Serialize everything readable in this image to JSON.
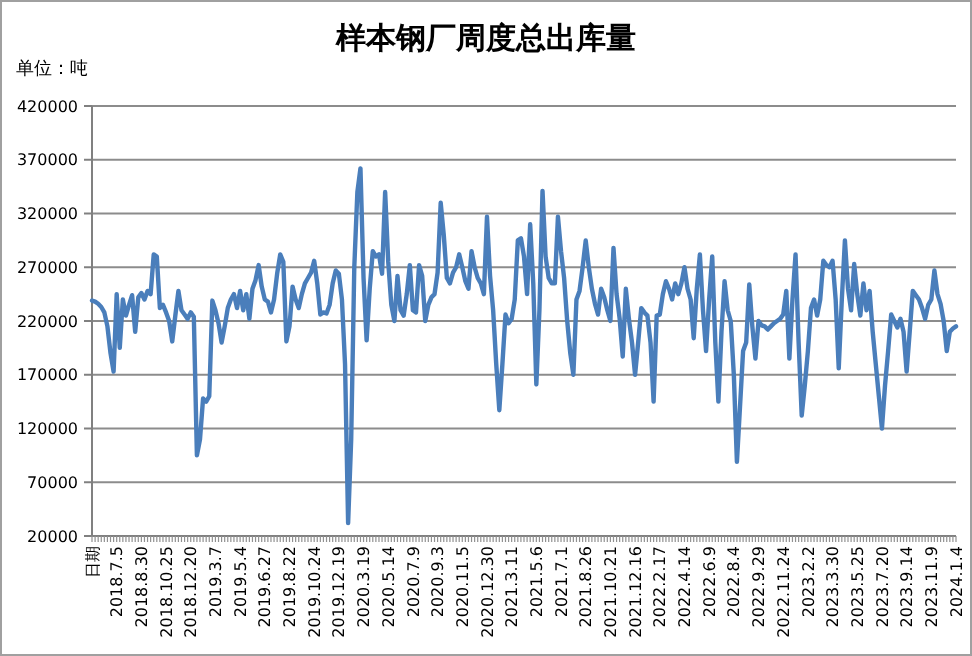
{
  "chart_data": {
    "type": "line",
    "title": "样本钢厂周度总出库量",
    "ylabel": "单位：吨",
    "categories": [
      "日期",
      null,
      null,
      null,
      null,
      null,
      null,
      null,
      "2018.7.5",
      null,
      null,
      null,
      null,
      null,
      null,
      null,
      "2018.8.30",
      null,
      null,
      null,
      null,
      null,
      null,
      null,
      "2018.10.25",
      null,
      null,
      null,
      null,
      null,
      null,
      null,
      "2018.12.20",
      null,
      null,
      null,
      null,
      null,
      null,
      null,
      "2019.3.7",
      null,
      null,
      null,
      null,
      null,
      null,
      null,
      "2019.5.4",
      null,
      null,
      null,
      null,
      null,
      null,
      null,
      "2019.6.27",
      null,
      null,
      null,
      null,
      null,
      null,
      null,
      "2019.8.22",
      null,
      null,
      null,
      null,
      null,
      null,
      null,
      "2019.10.24",
      null,
      null,
      null,
      null,
      null,
      null,
      null,
      "2019.12.19",
      null,
      null,
      null,
      null,
      null,
      null,
      null,
      "2020.3.19",
      null,
      null,
      null,
      null,
      null,
      null,
      null,
      "2020.5.14",
      null,
      null,
      null,
      null,
      null,
      null,
      null,
      "2020.7.9",
      null,
      null,
      null,
      null,
      null,
      null,
      null,
      "2020.9.3",
      null,
      null,
      null,
      null,
      null,
      null,
      null,
      "2020.11.5",
      null,
      null,
      null,
      null,
      null,
      null,
      null,
      "2020.12.30",
      null,
      null,
      null,
      null,
      null,
      null,
      null,
      "2021.3.11",
      null,
      null,
      null,
      null,
      null,
      null,
      null,
      "2021.5.6",
      null,
      null,
      null,
      null,
      null,
      null,
      null,
      "2021.7.1",
      null,
      null,
      null,
      null,
      null,
      null,
      null,
      "2021.8.26",
      null,
      null,
      null,
      null,
      null,
      null,
      null,
      "2021.10.21",
      null,
      null,
      null,
      null,
      null,
      null,
      null,
      "2021.12.16",
      null,
      null,
      null,
      null,
      null,
      null,
      null,
      "2022.2.17",
      null,
      null,
      null,
      null,
      null,
      null,
      null,
      "2022.4.14",
      null,
      null,
      null,
      null,
      null,
      null,
      null,
      "2022.6.9",
      null,
      null,
      null,
      null,
      null,
      null,
      null,
      "2022.8.4",
      null,
      null,
      null,
      null,
      null,
      null,
      null,
      "2022.9.29",
      null,
      null,
      null,
      null,
      null,
      null,
      null,
      "2022.11.24",
      null,
      null,
      null,
      null,
      null,
      null,
      null,
      "2023.2.2",
      null,
      null,
      null,
      null,
      null,
      null,
      null,
      "2023.3.30",
      null,
      null,
      null,
      null,
      null,
      null,
      null,
      "2023.5.25",
      null,
      null,
      null,
      null,
      null,
      null,
      null,
      "2023.7.20",
      null,
      null,
      null,
      null,
      null,
      null,
      null,
      "2023.9.14",
      null,
      null,
      null,
      null,
      null,
      null,
      null,
      "2023.11.9",
      null,
      null,
      null,
      null,
      null,
      null,
      null,
      "2024.1.4"
    ],
    "series": [
      {
        "color": "#4a7ebb",
        "values": [
          239000,
          238000,
          236000,
          233000,
          228000,
          215000,
          190000,
          173000,
          245000,
          195000,
          240000,
          225000,
          235000,
          244000,
          210000,
          242000,
          246000,
          240000,
          248000,
          245000,
          282000,
          280000,
          232000,
          235000,
          228000,
          220000,
          201000,
          225000,
          248000,
          230000,
          226000,
          222000,
          228000,
          224000,
          95000,
          110000,
          148000,
          145000,
          150000,
          239000,
          230000,
          218000,
          200000,
          215000,
          232000,
          240000,
          245000,
          232000,
          248000,
          230000,
          245000,
          222000,
          250000,
          258000,
          272000,
          252000,
          240000,
          238000,
          228000,
          240000,
          264000,
          282000,
          275000,
          201000,
          215000,
          252000,
          240000,
          232000,
          245000,
          255000,
          260000,
          265000,
          276000,
          255000,
          226000,
          228000,
          227000,
          235000,
          255000,
          267000,
          264000,
          240000,
          180000,
          32000,
          110000,
          270000,
          340000,
          362000,
          260000,
          202000,
          250000,
          285000,
          280000,
          282000,
          264000,
          340000,
          275000,
          235000,
          220000,
          262000,
          230000,
          225000,
          245000,
          272000,
          230000,
          228000,
          272000,
          262000,
          220000,
          235000,
          242000,
          245000,
          265000,
          330000,
          300000,
          260000,
          255000,
          265000,
          270000,
          282000,
          270000,
          257000,
          250000,
          285000,
          270000,
          260000,
          255000,
          245000,
          317000,
          262000,
          230000,
          180000,
          137000,
          180000,
          226000,
          218000,
          222000,
          240000,
          295000,
          297000,
          280000,
          245000,
          310000,
          255000,
          161000,
          230000,
          341000,
          280000,
          260000,
          255000,
          255000,
          317000,
          285000,
          260000,
          220000,
          190000,
          170000,
          240000,
          248000,
          270000,
          295000,
          270000,
          250000,
          236000,
          226000,
          250000,
          242000,
          230000,
          220000,
          288000,
          245000,
          222000,
          187000,
          250000,
          222000,
          200000,
          170000,
          200000,
          232000,
          228000,
          225000,
          200000,
          145000,
          225000,
          226000,
          245000,
          257000,
          250000,
          240000,
          255000,
          245000,
          255000,
          270000,
          250000,
          240000,
          204000,
          250000,
          282000,
          230000,
          192000,
          240000,
          280000,
          200000,
          145000,
          210000,
          257000,
          230000,
          220000,
          170000,
          89000,
          140000,
          192000,
          200000,
          254000,
          215000,
          185000,
          220000,
          216000,
          215000,
          212000,
          215000,
          218000,
          220000,
          222000,
          226000,
          248000,
          185000,
          240000,
          282000,
          200000,
          132000,
          160000,
          192000,
          232000,
          240000,
          225000,
          240000,
          276000,
          272000,
          270000,
          276000,
          240000,
          176000,
          240000,
          295000,
          250000,
          230000,
          273000,
          245000,
          225000,
          255000,
          230000,
          248000,
          210000,
          180000,
          150000,
          120000,
          160000,
          192000,
          226000,
          220000,
          214000,
          222000,
          210000,
          173000,
          210000,
          248000,
          244000,
          240000,
          232000,
          222000,
          235000,
          240000,
          267000,
          245000,
          236000,
          220000,
          192000,
          210000,
          213000,
          215000
        ]
      }
    ],
    "ylim": [
      20000,
      420000
    ],
    "yticks": [
      20000,
      70000,
      120000,
      170000,
      220000,
      270000,
      320000,
      370000,
      420000
    ],
    "grid": "y",
    "marker": "none",
    "line_style": "solid"
  }
}
